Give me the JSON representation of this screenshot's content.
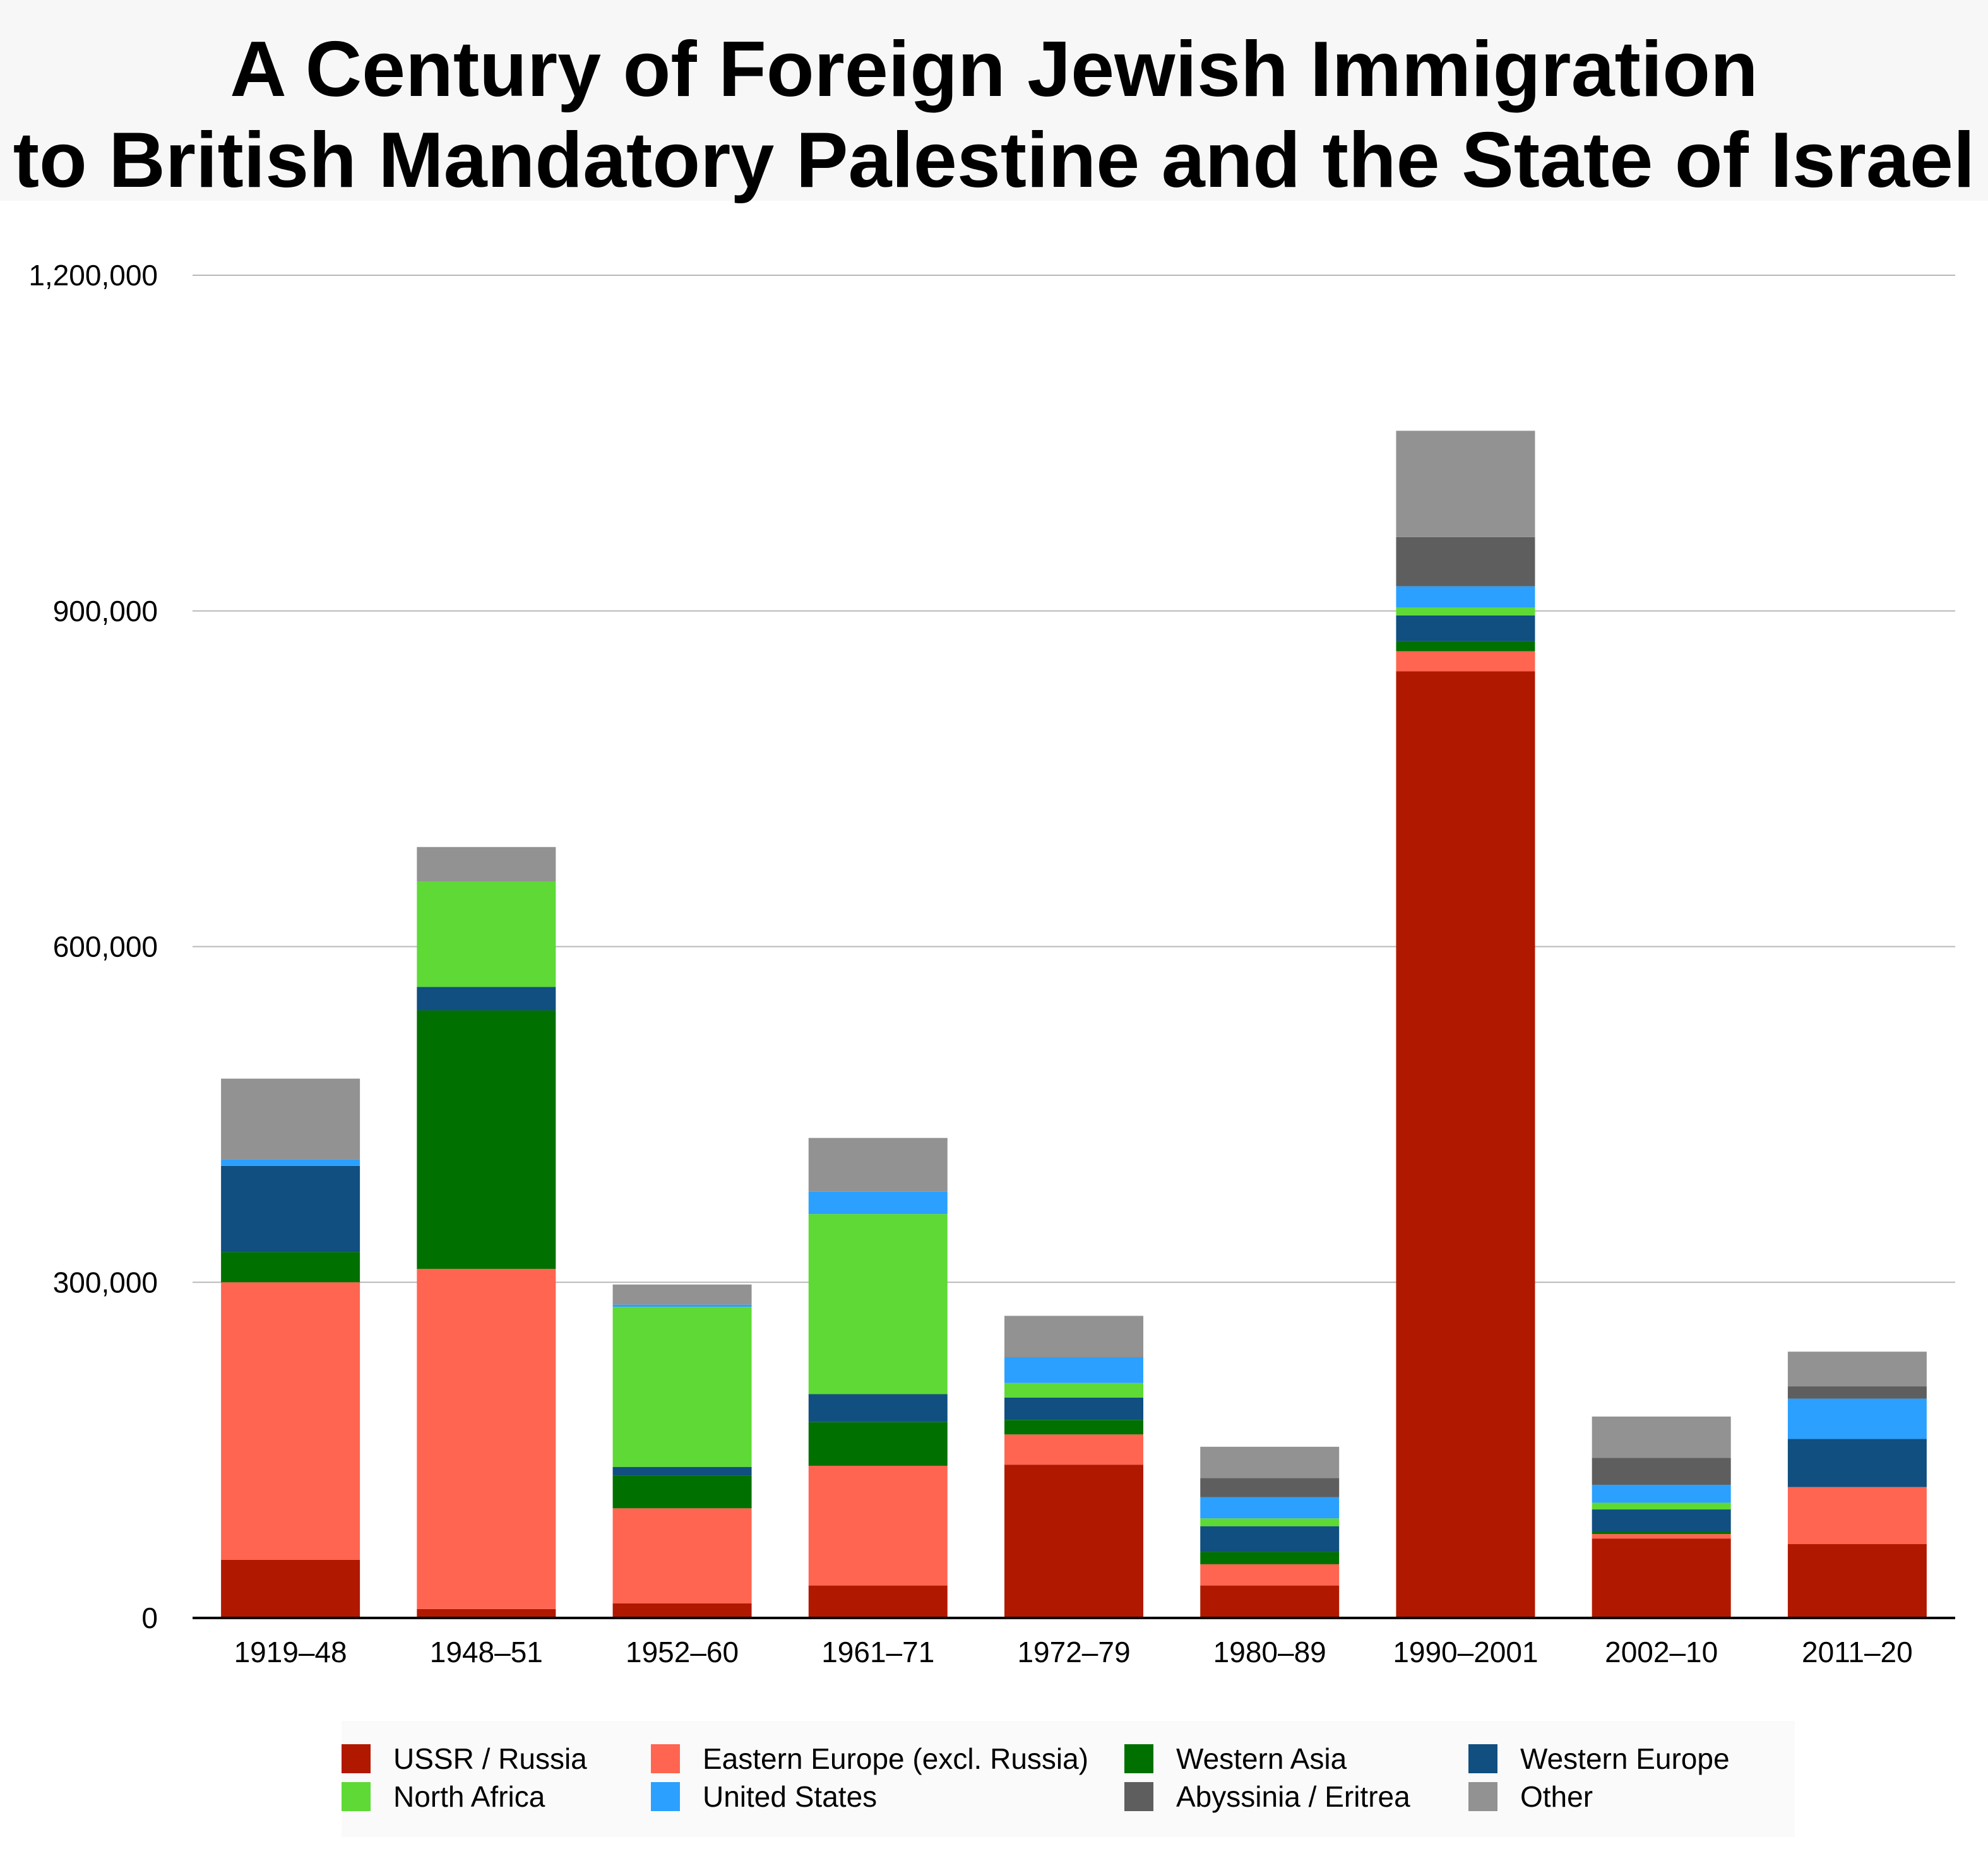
{
  "title": {
    "line1": "A Century of Foreign Jewish Immigration",
    "line2": "to British Mandatory Palestine and the State of Israel"
  },
  "chart_data": {
    "type": "bar",
    "stacked": true,
    "title": "A Century of Foreign Jewish Immigration to British Mandatory Palestine and the State of Israel",
    "xlabel": "",
    "ylabel": "",
    "ylim": [
      0,
      1200000
    ],
    "yticks": [
      0,
      300000,
      600000,
      900000,
      1200000
    ],
    "ytick_labels": [
      "0",
      "300,000",
      "600,000",
      "900,000",
      "1,200,000"
    ],
    "grid": true,
    "legend_position": "bottom",
    "categories": [
      "1919–48",
      "1948–51",
      "1952–60",
      "1961–71",
      "1972–79",
      "1980–89",
      "1990–2001",
      "2002–10",
      "2011–20"
    ],
    "series": [
      {
        "name": "USSR / Russia",
        "color": "#b11800",
        "values": [
          52000,
          8000,
          13000,
          29000,
          137000,
          29000,
          846000,
          71000,
          66000
        ]
      },
      {
        "name": "Eastern Europe (excl. Russia)",
        "color": "#ff6550",
        "values": [
          248000,
          304000,
          85000,
          107000,
          27000,
          19000,
          18000,
          4000,
          51000
        ]
      },
      {
        "name": "Western Asia",
        "color": "#007100",
        "values": [
          27000,
          231000,
          29000,
          39000,
          13000,
          11000,
          9000,
          2000,
          0
        ]
      },
      {
        "name": "Western Europe",
        "color": "#104f80",
        "values": [
          77000,
          21000,
          8000,
          25000,
          20000,
          23000,
          23000,
          20000,
          43000
        ]
      },
      {
        "name": "North Africa",
        "color": "#5ed935",
        "values": [
          0,
          94000,
          143000,
          161000,
          13000,
          7000,
          7000,
          6000,
          0
        ]
      },
      {
        "name": "United States",
        "color": "#2ba0fe",
        "values": [
          6000,
          0,
          2000,
          20000,
          23000,
          19000,
          19000,
          16000,
          36000
        ]
      },
      {
        "name": "Abyssinia / Eritrea",
        "color": "#5e5e5e",
        "values": [
          0,
          0,
          0,
          0,
          0,
          17000,
          44000,
          24000,
          11000
        ]
      },
      {
        "name": "Other",
        "color": "#929292",
        "values": [
          72000,
          31000,
          18000,
          48000,
          37000,
          28000,
          95000,
          37000,
          31000
        ]
      }
    ]
  }
}
